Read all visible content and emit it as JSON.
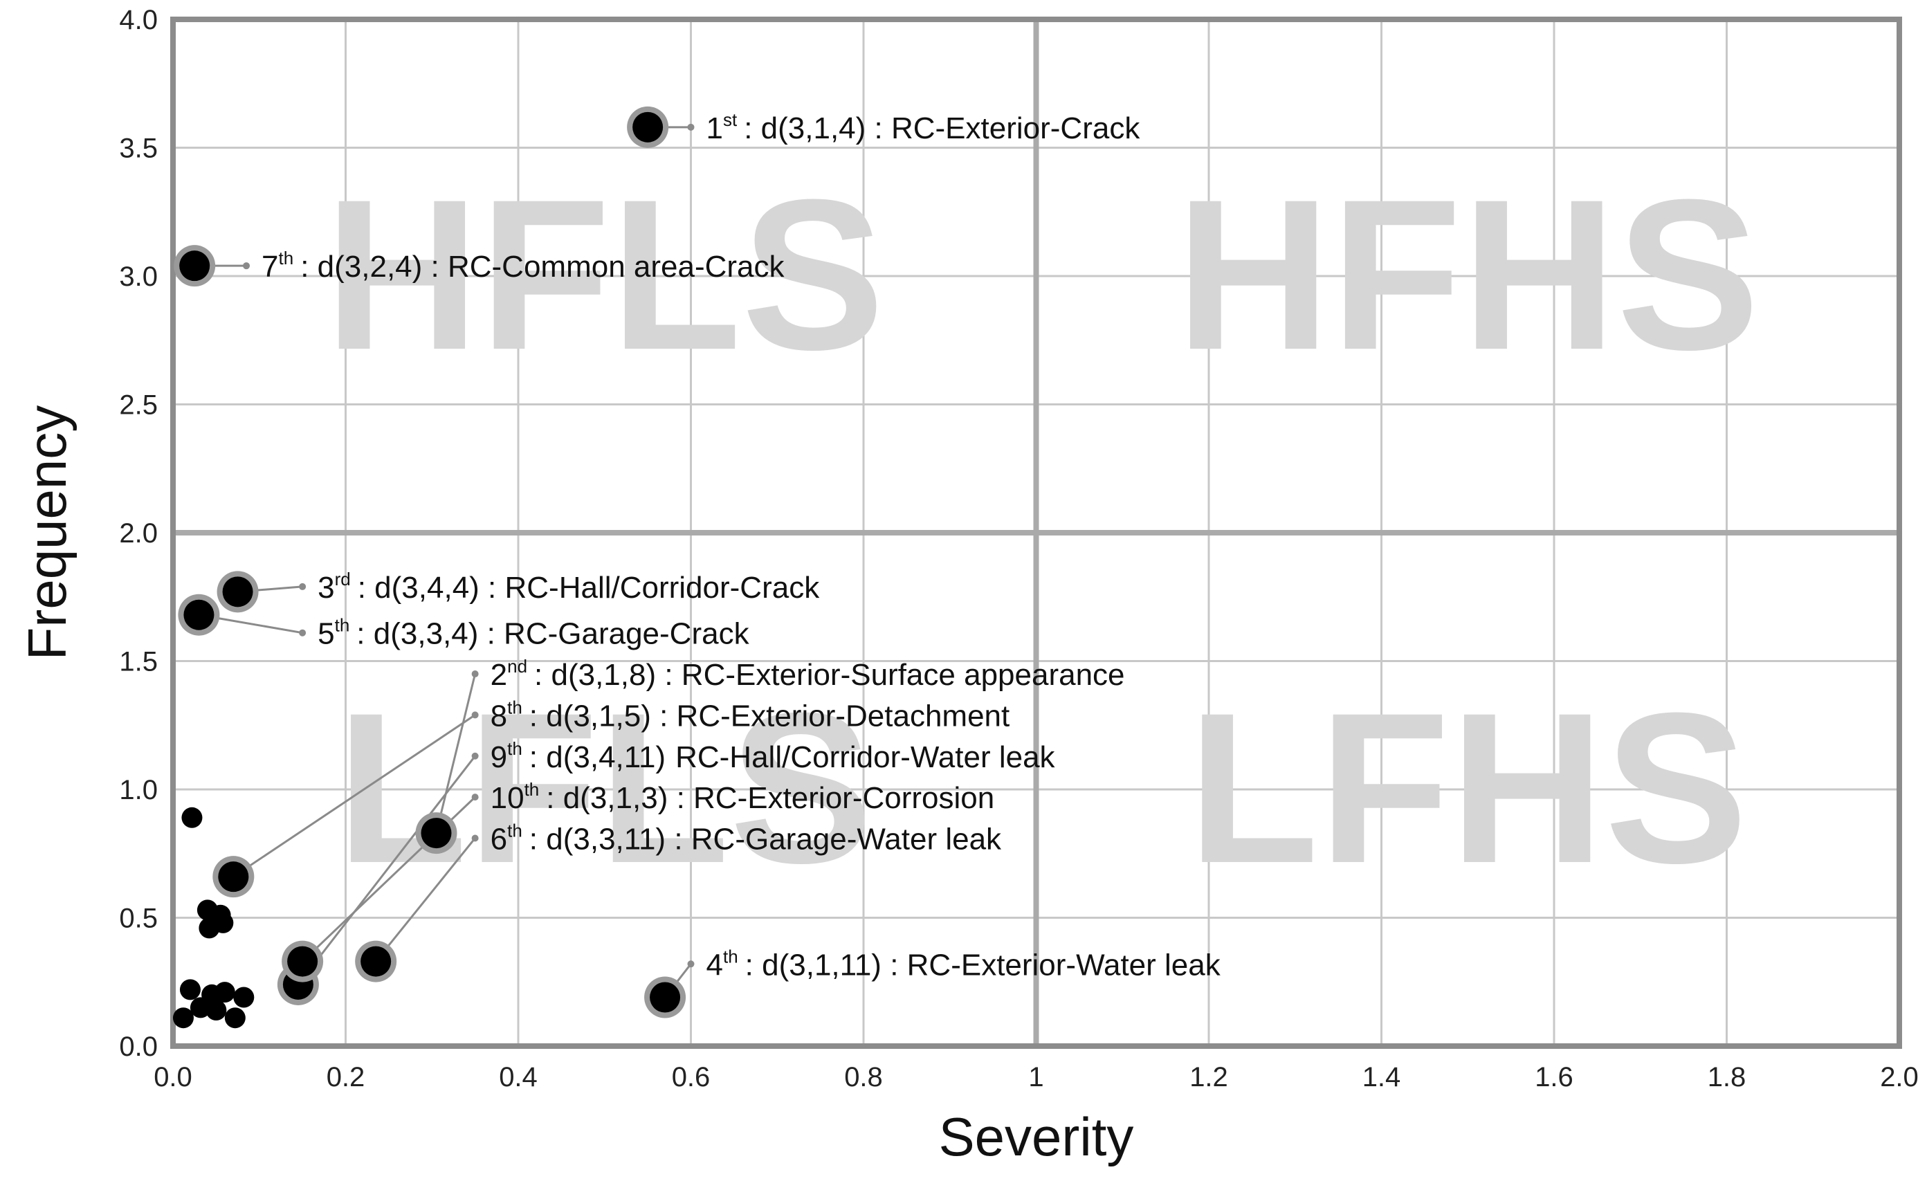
{
  "chart_data": {
    "type": "scatter",
    "xlabel": "Severity",
    "ylabel": "Frequency",
    "xlim": [
      0,
      2.0
    ],
    "ylim": [
      0,
      4.0
    ],
    "x_ticks": [
      "0.0",
      "0.2",
      "0.4",
      "0.6",
      "0.8",
      "1",
      "1.2",
      "1.4",
      "1.6",
      "1.8",
      "2.0"
    ],
    "y_ticks": [
      "0.0",
      "0.5",
      "1.0",
      "1.5",
      "2.0",
      "2.5",
      "3.0",
      "3.5",
      "4.0"
    ],
    "grid": true,
    "quadrant_dividers": {
      "x": 1.0,
      "y": 2.0
    },
    "quadrant_labels": [
      {
        "text": "HFLS",
        "x": 0.5,
        "y": 3.0
      },
      {
        "text": "HFHS",
        "x": 1.5,
        "y": 3.0
      },
      {
        "text": "LFLS",
        "x": 0.5,
        "y": 1.0
      },
      {
        "text": "LFHS",
        "x": 1.5,
        "y": 1.0
      }
    ],
    "colors": {
      "point": "#000000",
      "ring": "#9a9a9a",
      "leader": "#8a8a8a",
      "grid": "#c8c8c8",
      "divider": "#aaaaaa",
      "frame": "#8c8c8c",
      "quadrant_text": "#d6d6d6"
    },
    "highlighted": [
      {
        "x": 0.55,
        "y": 3.58,
        "rank": "1",
        "suffix": "st",
        "label": ": d(3,1,4) : RC-Exterior-Crack",
        "lx": 0.6,
        "ly": 3.58
      },
      {
        "x": 0.025,
        "y": 3.04,
        "rank": "7",
        "suffix": "th",
        "label": ": d(3,2,4) : RC-Common area-Crack",
        "lx": 0.085,
        "ly": 3.04
      },
      {
        "x": 0.075,
        "y": 1.77,
        "rank": "3",
        "suffix": "rd",
        "label": ": d(3,4,4) : RC-Hall/Corridor-Crack",
        "lx": 0.15,
        "ly": 1.79
      },
      {
        "x": 0.03,
        "y": 1.68,
        "rank": "5",
        "suffix": "th",
        "label": ": d(3,3,4) : RC-Garage-Crack",
        "lx": 0.15,
        "ly": 1.61
      },
      {
        "x": 0.305,
        "y": 0.83,
        "rank": "2",
        "suffix": "nd",
        "label": ": d(3,1,8) : RC-Exterior-Surface appearance",
        "lx": 0.35,
        "ly": 1.45
      },
      {
        "x": 0.07,
        "y": 0.66,
        "rank": "8",
        "suffix": "th",
        "label": ": d(3,1,5) : RC-Exterior-Detachment",
        "lx": 0.35,
        "ly": 1.29
      },
      {
        "x": 0.145,
        "y": 0.24,
        "rank": "9",
        "suffix": "th",
        "label": "RC-Hall/Corridor-Water leak",
        "prefix": ": d(3,4,11)",
        "lx": 0.35,
        "ly": 1.13
      },
      {
        "x": 0.15,
        "y": 0.33,
        "rank": "10",
        "suffix": "th",
        "label": ": d(3,1,3) : RC-Exterior-Corrosion",
        "lx": 0.35,
        "ly": 0.97
      },
      {
        "x": 0.235,
        "y": 0.33,
        "rank": "6",
        "suffix": "th",
        "label": ": d(3,3,11) : RC-Garage-Water leak",
        "lx": 0.35,
        "ly": 0.81
      },
      {
        "x": 0.57,
        "y": 0.19,
        "rank": "4",
        "suffix": "th",
        "label": ": d(3,1,11) : RC-Exterior-Water leak",
        "lx": 0.6,
        "ly": 0.32
      }
    ],
    "others": [
      {
        "x": 0.022,
        "y": 0.89
      },
      {
        "x": 0.04,
        "y": 0.53
      },
      {
        "x": 0.055,
        "y": 0.51
      },
      {
        "x": 0.042,
        "y": 0.46
      },
      {
        "x": 0.058,
        "y": 0.48
      },
      {
        "x": 0.02,
        "y": 0.22
      },
      {
        "x": 0.045,
        "y": 0.2
      },
      {
        "x": 0.06,
        "y": 0.21
      },
      {
        "x": 0.082,
        "y": 0.19
      },
      {
        "x": 0.032,
        "y": 0.15
      },
      {
        "x": 0.05,
        "y": 0.14
      },
      {
        "x": 0.012,
        "y": 0.11
      },
      {
        "x": 0.072,
        "y": 0.11
      }
    ]
  }
}
